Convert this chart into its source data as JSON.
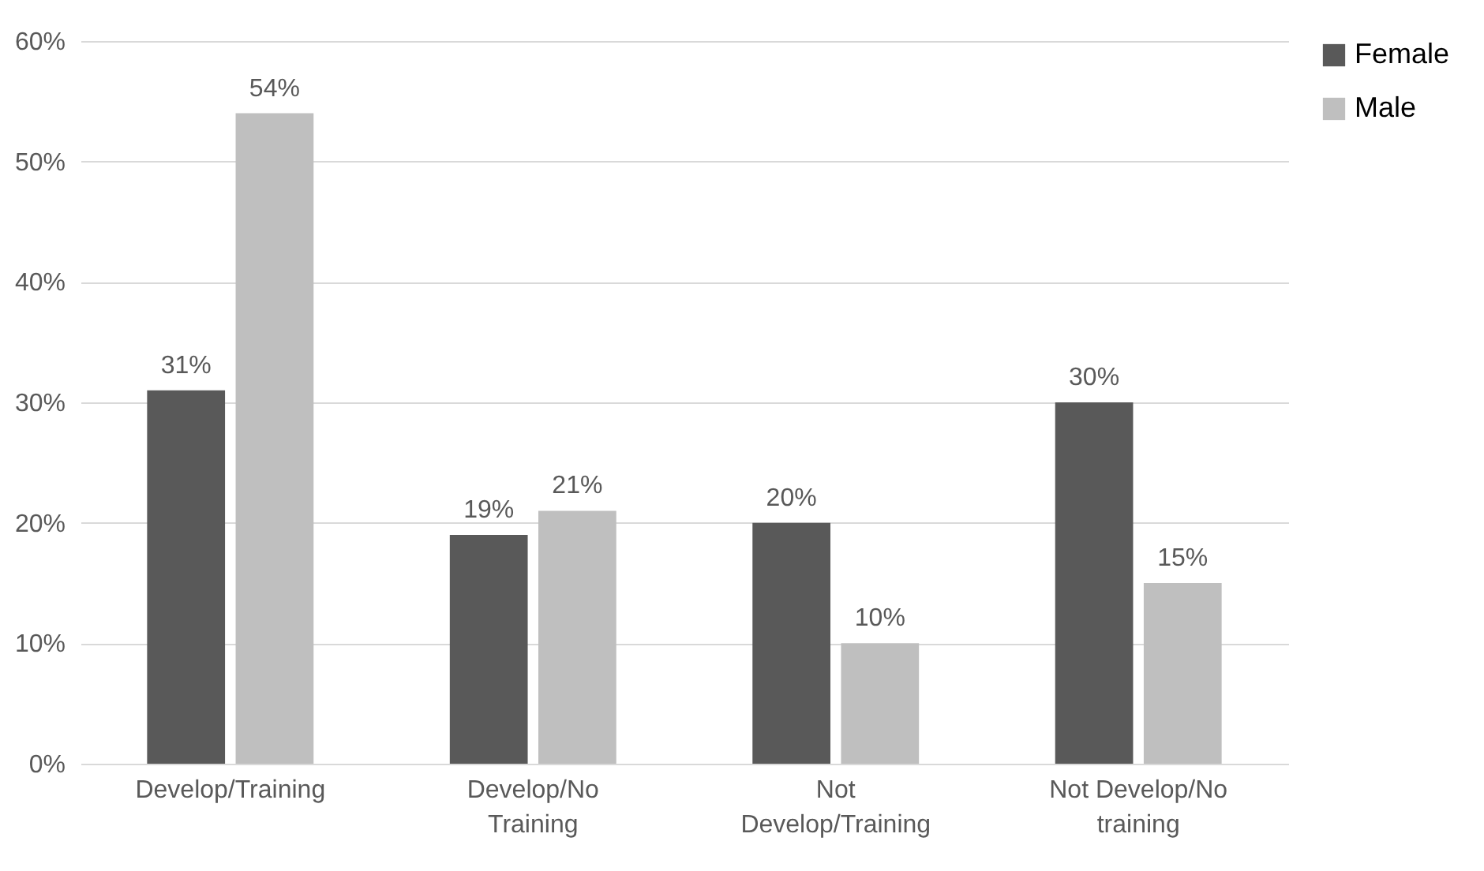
{
  "chart_data": {
    "type": "bar",
    "categories": [
      "Develop/Training",
      "Develop/No Training",
      "Not Develop/Training",
      "Not Develop/No training"
    ],
    "series": [
      {
        "name": "Female",
        "color": "#595959",
        "values": [
          31,
          19,
          20,
          30
        ],
        "value_labels": [
          "31%",
          "19%",
          "20%",
          "30%"
        ]
      },
      {
        "name": "Male",
        "color": "#bfbfbf",
        "values": [
          54,
          21,
          10,
          15
        ],
        "value_labels": [
          "54%",
          "21%",
          "10%",
          "15%"
        ]
      }
    ],
    "ylim": [
      0,
      60
    ],
    "yticks": [
      {
        "value": 0,
        "label": "0%"
      },
      {
        "value": 10,
        "label": "10%"
      },
      {
        "value": 20,
        "label": "20%"
      },
      {
        "value": 30,
        "label": "30%"
      },
      {
        "value": 40,
        "label": "40%"
      },
      {
        "value": 50,
        "label": "50%"
      },
      {
        "value": 60,
        "label": "60%"
      }
    ],
    "grid": "y",
    "legend": "right"
  }
}
